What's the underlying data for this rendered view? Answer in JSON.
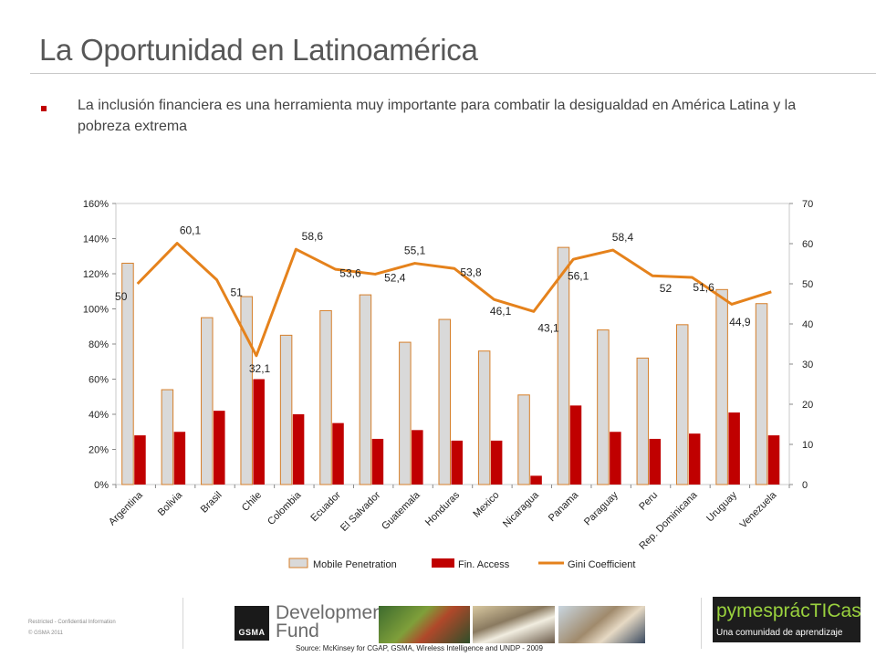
{
  "slide": {
    "title": "La Oportunidad en Latinoamérica",
    "bullet": "La inclusión financiera es una herramienta muy importante para combatir la desigualdad en América Latina y la pobreza extrema"
  },
  "footer": {
    "restricted": "Restricted - Confidential Information",
    "copyright": "© GSMA 2011",
    "gsma_logo_text": "GSMA",
    "dev_fund_line1": "Development",
    "dev_fund_line2": "Fund",
    "source": "Source: McKinsey for CGAP, GSMA,  Wireless Intelligence and UNDP - 2009",
    "pymes_title": "pymesprácTICas",
    "pymes_subtitle": "Una comunidad de aprendizaje"
  },
  "colors": {
    "mobile_fill": "#d9d9d9",
    "mobile_stroke": "#d67f2a",
    "fin_access": "#c00000",
    "gini": "#e5821c",
    "bullet": "#c00000"
  },
  "chart_data": {
    "type": "bar",
    "categories": [
      "Argentina",
      "Bolivia",
      "Brasil",
      "Chile",
      "Colombia",
      "Ecuador",
      "El Salvador",
      "Guatemala",
      "Honduras",
      "Mexico",
      "Nicaragua",
      "Panama",
      "Paraguay",
      "Peru",
      "Rep. Dominicana",
      "Uruguay",
      "Venezuela"
    ],
    "series": [
      {
        "name": "Mobile Penetration",
        "type": "bar",
        "axis": "left",
        "values": [
          1.26,
          0.54,
          0.95,
          1.07,
          0.85,
          0.99,
          1.08,
          0.81,
          0.94,
          0.76,
          0.51,
          1.35,
          0.88,
          0.72,
          0.91,
          1.11,
          1.03
        ]
      },
      {
        "name": "Fin. Access",
        "type": "bar",
        "axis": "left",
        "values": [
          0.28,
          0.3,
          0.42,
          0.6,
          0.4,
          0.35,
          0.26,
          0.31,
          0.25,
          0.25,
          0.05,
          0.45,
          0.3,
          0.26,
          0.29,
          0.41,
          0.28
        ]
      },
      {
        "name": "Gini Coefficient",
        "type": "line",
        "axis": "right",
        "values": [
          50,
          60.1,
          51,
          32.1,
          58.6,
          53.6,
          52.4,
          55.1,
          53.8,
          46.1,
          43.1,
          56.1,
          58.4,
          52,
          51.6,
          44.9,
          48
        ]
      },
      {
        "labels": [
          "50",
          "60,1",
          "51",
          "32,1",
          "58,6",
          "53,6",
          "52,4",
          "55,1",
          "53,8",
          "46,1",
          "43,1",
          "56,1",
          "58,4",
          "52",
          "51,6",
          "44,9",
          ""
        ]
      }
    ],
    "left_axis": {
      "ylim": [
        0,
        1.6
      ],
      "ticks": [
        "0%",
        "20%",
        "40%",
        "60%",
        "80%",
        "100%",
        "120%",
        "140%",
        "160%"
      ]
    },
    "right_axis": {
      "ylim": [
        0,
        70
      ],
      "ticks": [
        "0",
        "10",
        "20",
        "30",
        "40",
        "50",
        "60",
        "70"
      ]
    },
    "legend_position": "bottom",
    "grid": true
  }
}
